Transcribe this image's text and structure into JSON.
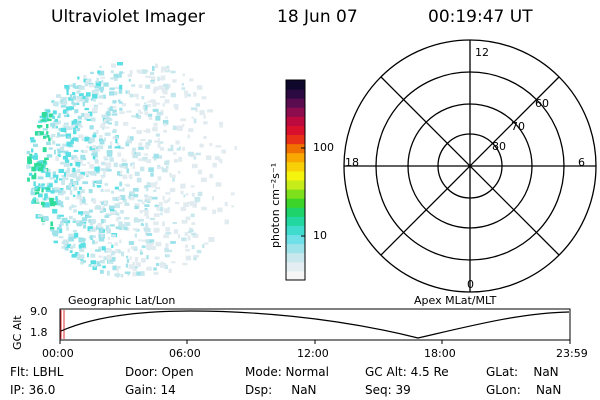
{
  "header": {
    "instrument": "Ultraviolet Imager",
    "date": "18 Jun 07",
    "time": "00:19:47 UT"
  },
  "colorbar": {
    "unit_label": "photon cm⁻²s⁻¹",
    "ticks": [
      {
        "label": "100",
        "value": 100
      },
      {
        "label": "10",
        "value": 10
      }
    ],
    "colors": [
      "#f6f6f6",
      "#e4eef2",
      "#c8e8ee",
      "#9fe3ea",
      "#6fdfe8",
      "#3fdccd",
      "#22d8a0",
      "#1ed46a",
      "#3cd428",
      "#7ee01a",
      "#c6ec1a",
      "#f4f40e",
      "#f8d008",
      "#f8a800",
      "#f07000",
      "#e83018",
      "#d8102c",
      "#bc0a3e",
      "#8c0c4e",
      "#5a0c50",
      "#2a0a40",
      "#10082c"
    ]
  },
  "polar_plot": {
    "hour_labels": {
      "top": "12",
      "left": "18",
      "right": "6",
      "bottom": "0"
    },
    "lat_labels": [
      "80",
      "70",
      "60"
    ]
  },
  "altitude_plot": {
    "ylabel": "GC Alt",
    "y_ticks": [
      "9.0",
      "1.8"
    ],
    "left_title": "Geographic Lat/Lon",
    "right_title": "Apex MLat/MLT",
    "x_ticks": [
      "00:00",
      "06:00",
      "12:00",
      "18:00",
      "23:59"
    ]
  },
  "status": {
    "row1": [
      {
        "text": "Flt: LBHL"
      },
      {
        "text": "Door: Open"
      },
      {
        "text": "Mode: Normal"
      },
      {
        "text": "GC Alt: 4.5 Re"
      },
      {
        "text": "GLat:    NaN"
      }
    ],
    "row2": [
      {
        "text": "IP: 36.0"
      },
      {
        "text": "Gain: 14"
      },
      {
        "text": "Dsp:     NaN"
      },
      {
        "text": "Seq: 39"
      },
      {
        "text": "GLon:    NaN"
      }
    ]
  }
}
